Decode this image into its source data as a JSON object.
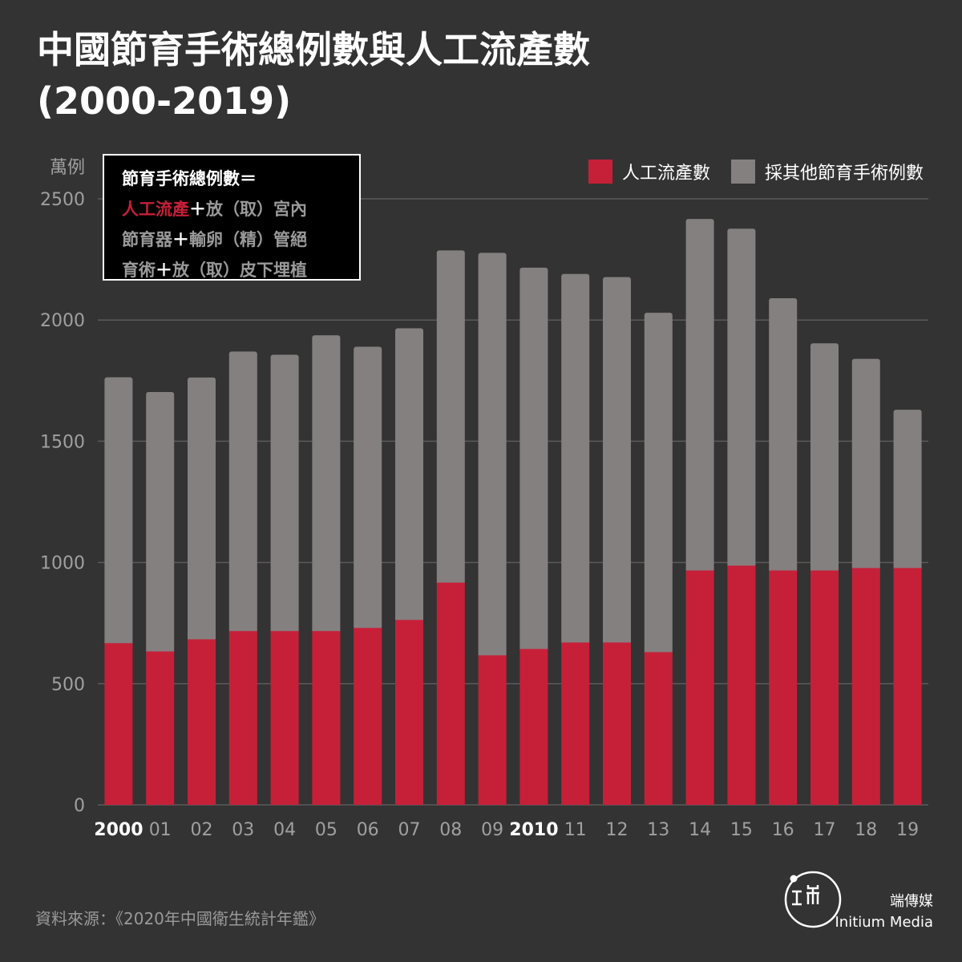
{
  "title_line1": "中國節育手術總例數與人工流產數",
  "title_line2": "(2000-2019)",
  "note": {
    "line1": "節育手術總例數＝",
    "red": "人工流產",
    "plus1": "＋",
    "line2_rest": "放（取）宮內",
    "line3a": "節育器",
    "plus2": "＋",
    "line3b": "輸卵（精）管絕",
    "line4a": "育術",
    "plus3": "＋",
    "line4b": "放（取）皮下埋植"
  },
  "source": "資料來源：《2020年中國衛生統計年鑑》",
  "brand": {
    "cn": "端傳媒",
    "en": "Initium Media"
  },
  "colors": {
    "background": "#333333",
    "abortion": "#c62038",
    "other": "#858080",
    "text": "#ffffff",
    "muted": "#9a9a9a"
  },
  "chart_data": {
    "type": "bar",
    "stacked": true,
    "ylabel": "萬例",
    "ylim": [
      0,
      2500
    ],
    "yticks": [
      0,
      500,
      1000,
      1500,
      2000,
      2500
    ],
    "categories": [
      "2000",
      "01",
      "02",
      "03",
      "04",
      "05",
      "06",
      "07",
      "08",
      "09",
      "2010",
      "11",
      "12",
      "13",
      "14",
      "15",
      "16",
      "17",
      "18",
      "19"
    ],
    "bold_categories": [
      "2000",
      "2010"
    ],
    "series": [
      {
        "name": "人工流產數",
        "color": "#c62038",
        "values": [
          667,
          633,
          683,
          717,
          717,
          717,
          730,
          763,
          917,
          617,
          643,
          670,
          670,
          630,
          967,
          987,
          967,
          967,
          977,
          977
        ]
      },
      {
        "name": "採其他節育手術例數",
        "color": "#858080",
        "values": [
          1097,
          1070,
          1080,
          1153,
          1140,
          1220,
          1160,
          1203,
          1370,
          1660,
          1573,
          1520,
          1507,
          1400,
          1450,
          1390,
          1123,
          937,
          863,
          653
        ]
      }
    ],
    "totals": [
      1764,
      1703,
      1763,
      1870,
      1857,
      1937,
      1890,
      1966,
      2287,
      2277,
      2216,
      2190,
      2177,
      2030,
      2417,
      2377,
      2090,
      1904,
      1840,
      1630
    ],
    "grid": "horizontal",
    "legend_position": "top-right"
  }
}
